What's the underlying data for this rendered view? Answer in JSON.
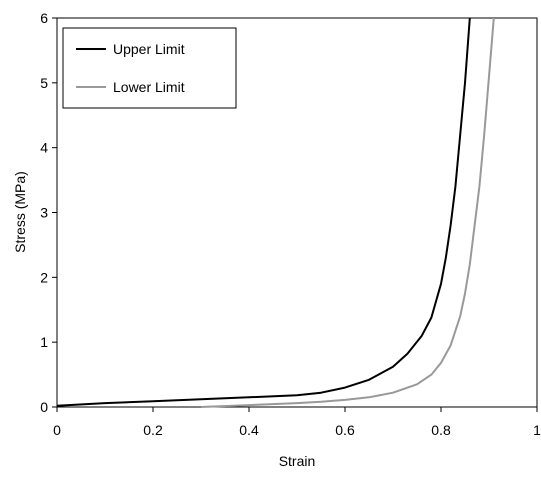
{
  "chart_data": {
    "type": "line",
    "title": "",
    "xlabel": "Strain",
    "ylabel": "Stress (MPa)",
    "xlim": [
      0,
      1
    ],
    "ylim": [
      0,
      6
    ],
    "xticks": [
      "0",
      "0.2",
      "0.4",
      "0.6",
      "0.8",
      "1"
    ],
    "yticks": [
      "0",
      "1",
      "2",
      "3",
      "4",
      "5",
      "6"
    ],
    "grid": false,
    "legend_position": "top-left",
    "series": [
      {
        "name": "Upper Limit",
        "color": "#000000",
        "points": [
          [
            0.0,
            0.02
          ],
          [
            0.1,
            0.06
          ],
          [
            0.2,
            0.09
          ],
          [
            0.3,
            0.12
          ],
          [
            0.4,
            0.15
          ],
          [
            0.5,
            0.18
          ],
          [
            0.55,
            0.22
          ],
          [
            0.6,
            0.3
          ],
          [
            0.65,
            0.42
          ],
          [
            0.7,
            0.62
          ],
          [
            0.73,
            0.82
          ],
          [
            0.76,
            1.1
          ],
          [
            0.78,
            1.38
          ],
          [
            0.8,
            1.9
          ],
          [
            0.81,
            2.3
          ],
          [
            0.82,
            2.8
          ],
          [
            0.83,
            3.4
          ],
          [
            0.84,
            4.2
          ],
          [
            0.85,
            5.0
          ],
          [
            0.86,
            6.0
          ]
        ]
      },
      {
        "name": "Lower Limit",
        "color": "#999999",
        "points": [
          [
            0.3,
            0.0
          ],
          [
            0.4,
            0.03
          ],
          [
            0.5,
            0.06
          ],
          [
            0.55,
            0.08
          ],
          [
            0.6,
            0.11
          ],
          [
            0.65,
            0.15
          ],
          [
            0.7,
            0.22
          ],
          [
            0.75,
            0.35
          ],
          [
            0.78,
            0.5
          ],
          [
            0.8,
            0.68
          ],
          [
            0.82,
            0.95
          ],
          [
            0.84,
            1.4
          ],
          [
            0.85,
            1.75
          ],
          [
            0.86,
            2.2
          ],
          [
            0.87,
            2.8
          ],
          [
            0.88,
            3.4
          ],
          [
            0.89,
            4.2
          ],
          [
            0.9,
            5.1
          ],
          [
            0.91,
            6.0
          ]
        ]
      }
    ]
  }
}
